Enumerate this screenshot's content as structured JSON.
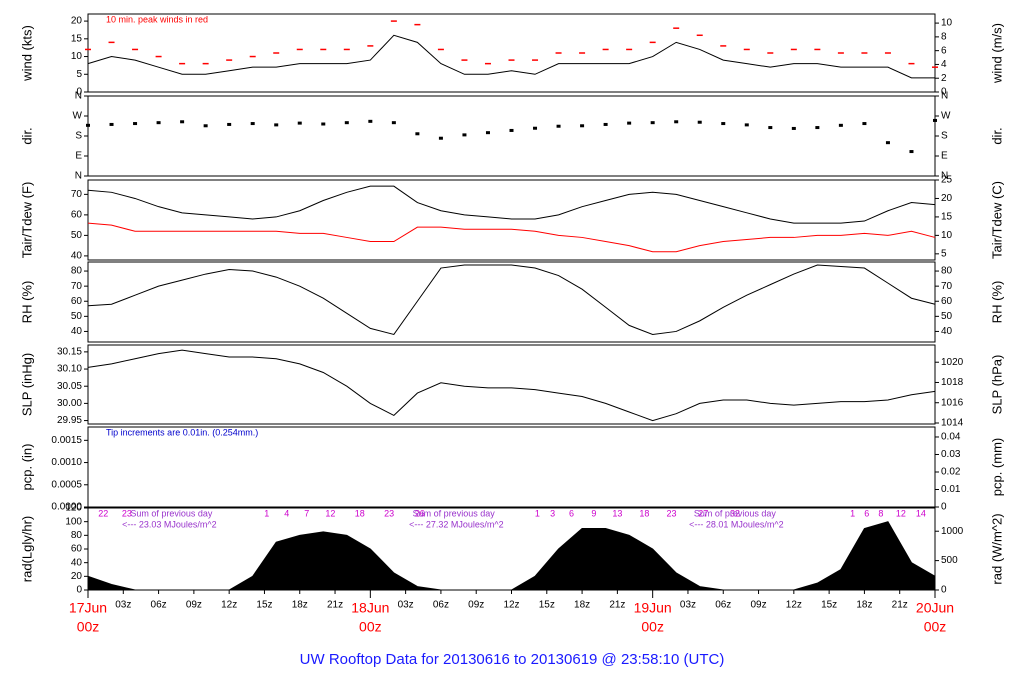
{
  "title": "UW Rooftop Data for 20130616  to  20130619 @ 23:58:10  (UTC)",
  "chart_data": [
    {
      "type": "line",
      "ylabel": "wind (kts)",
      "y2label": "wind (m/s)",
      "annotation": "10 min. peak winds in red",
      "xlim": [
        0,
        72
      ],
      "ylim": [
        0,
        22
      ],
      "yticks": [
        0,
        5,
        10,
        15,
        20
      ],
      "y2lim": [
        0,
        11.32
      ],
      "y2ticks": [
        0,
        2,
        4,
        6,
        8,
        10
      ],
      "x": [
        0,
        2,
        4,
        6,
        8,
        10,
        12,
        14,
        16,
        18,
        20,
        22,
        24,
        26,
        28,
        30,
        32,
        34,
        36,
        38,
        40,
        42,
        44,
        46,
        48,
        50,
        52,
        54,
        56,
        58,
        60,
        62,
        64,
        66,
        68,
        70,
        72
      ],
      "series": [
        {
          "name": "wind",
          "color": "#000000",
          "mode": "line",
          "values": [
            8,
            10,
            9,
            7,
            5,
            5,
            6,
            7,
            7,
            8,
            8,
            8,
            9,
            16,
            14,
            8,
            5,
            5,
            6,
            5,
            8,
            8,
            8,
            8,
            10,
            14,
            12,
            9,
            8,
            7,
            8,
            8,
            7,
            7,
            7,
            4,
            4
          ]
        },
        {
          "name": "peak",
          "color": "#ff0000",
          "mode": "dash",
          "values": [
            12,
            14,
            12,
            10,
            8,
            8,
            9,
            10,
            11,
            12,
            12,
            12,
            13,
            20,
            19,
            12,
            9,
            8,
            9,
            9,
            11,
            11,
            12,
            12,
            14,
            18,
            16,
            13,
            12,
            11,
            12,
            12,
            11,
            11,
            11,
            8,
            7
          ]
        }
      ]
    },
    {
      "type": "scatter",
      "ylabel": "dir.",
      "y2label": "dir.",
      "xlim": [
        0,
        72
      ],
      "ylim": [
        0,
        360
      ],
      "yticks": [
        {
          "value": 0,
          "label": "N"
        },
        {
          "value": 90,
          "label": "E"
        },
        {
          "value": 180,
          "label": "S"
        },
        {
          "value": 270,
          "label": "W"
        },
        {
          "value": 360,
          "label": "N"
        }
      ],
      "y2lim": [
        0,
        360
      ],
      "y2ticks": [
        {
          "value": 0,
          "label": "N"
        },
        {
          "value": 90,
          "label": "E"
        },
        {
          "value": 180,
          "label": "S"
        },
        {
          "value": 270,
          "label": "W"
        },
        {
          "value": 360,
          "label": "N"
        }
      ],
      "x": [
        0,
        2,
        4,
        6,
        8,
        10,
        12,
        14,
        16,
        18,
        20,
        22,
        24,
        26,
        28,
        30,
        32,
        34,
        36,
        38,
        40,
        42,
        44,
        46,
        48,
        50,
        52,
        54,
        56,
        58,
        60,
        62,
        64,
        66,
        68,
        70,
        72
      ],
      "series": [
        {
          "name": "direction",
          "color": "#000000",
          "values": [
            228,
            232,
            236,
            240,
            244,
            226,
            232,
            236,
            230,
            238,
            234,
            240,
            246,
            240,
            190,
            170,
            185,
            195,
            205,
            215,
            224,
            226,
            232,
            238,
            240,
            244,
            242,
            236,
            230,
            218,
            214,
            218,
            228,
            236,
            150,
            110,
            250
          ]
        }
      ]
    },
    {
      "type": "line",
      "ylabel": "Tair/Tdew (F)",
      "y2label": "Tair/Tdew (C)",
      "xlim": [
        0,
        72
      ],
      "ylim": [
        38,
        77
      ],
      "yticks": [
        40,
        50,
        60,
        70
      ],
      "y2lim": [
        3.33,
        25
      ],
      "y2ticks": [
        5,
        10,
        15,
        20,
        25
      ],
      "x": [
        0,
        2,
        4,
        6,
        8,
        10,
        12,
        14,
        16,
        18,
        20,
        22,
        24,
        26,
        28,
        30,
        32,
        34,
        36,
        38,
        40,
        42,
        44,
        46,
        48,
        50,
        52,
        54,
        56,
        58,
        60,
        62,
        64,
        66,
        68,
        70,
        72
      ],
      "series": [
        {
          "name": "Tair",
          "color": "#000000",
          "mode": "line",
          "values": [
            72,
            71,
            68,
            64,
            61,
            60,
            59,
            58,
            59,
            62,
            67,
            71,
            74,
            74,
            66,
            62,
            60,
            59,
            58,
            58,
            60,
            64,
            67,
            70,
            71,
            70,
            67,
            64,
            61,
            58,
            56,
            56,
            56,
            57,
            62,
            66,
            65
          ]
        },
        {
          "name": "Tdew",
          "color": "#ff0000",
          "mode": "line",
          "values": [
            56,
            55,
            52,
            52,
            52,
            52,
            52,
            52,
            52,
            51,
            51,
            49,
            47,
            47,
            54,
            54,
            53,
            53,
            53,
            52,
            50,
            49,
            47,
            45,
            42,
            42,
            45,
            47,
            48,
            49,
            49,
            50,
            50,
            51,
            50,
            52,
            49
          ]
        }
      ]
    },
    {
      "type": "line",
      "ylabel": "RH (%)",
      "y2label": "RH (%)",
      "xlim": [
        0,
        72
      ],
      "ylim": [
        33,
        86
      ],
      "yticks": [
        40,
        50,
        60,
        70,
        80
      ],
      "y2lim": [
        33,
        86
      ],
      "y2ticks": [
        40,
        50,
        60,
        70,
        80
      ],
      "x": [
        0,
        2,
        4,
        6,
        8,
        10,
        12,
        14,
        16,
        18,
        20,
        22,
        24,
        26,
        28,
        30,
        32,
        34,
        36,
        38,
        40,
        42,
        44,
        46,
        48,
        50,
        52,
        54,
        56,
        58,
        60,
        62,
        64,
        66,
        68,
        70,
        72
      ],
      "series": [
        {
          "name": "RH",
          "color": "#000000",
          "mode": "line",
          "values": [
            57,
            58,
            64,
            70,
            74,
            78,
            81,
            80,
            76,
            70,
            62,
            52,
            42,
            38,
            60,
            82,
            84,
            84,
            84,
            82,
            77,
            68,
            56,
            44,
            38,
            40,
            47,
            56,
            64,
            71,
            78,
            84,
            83,
            82,
            72,
            62,
            58
          ]
        }
      ]
    },
    {
      "type": "line",
      "ylabel": "SLP (inHg)",
      "y2label": "SLP (hPa)",
      "xlim": [
        0,
        72
      ],
      "ylim": [
        29.94,
        30.17
      ],
      "yticks": [
        29.95,
        {
          "value": 30.0,
          "label": "30.00"
        },
        30.05,
        {
          "value": 30.1,
          "label": "30.10"
        },
        30.15
      ],
      "y2lim": [
        1013.9,
        1021.7
      ],
      "y2ticks": [
        1014,
        1016,
        1018,
        1020
      ],
      "x": [
        0,
        2,
        4,
        6,
        8,
        10,
        12,
        14,
        16,
        18,
        20,
        22,
        24,
        26,
        28,
        30,
        32,
        34,
        36,
        38,
        40,
        42,
        44,
        46,
        48,
        50,
        52,
        54,
        56,
        58,
        60,
        62,
        64,
        66,
        68,
        70,
        72
      ],
      "series": [
        {
          "name": "SLP",
          "color": "#000000",
          "mode": "line",
          "values": [
            30.105,
            30.115,
            30.13,
            30.145,
            30.155,
            30.145,
            30.135,
            30.135,
            30.13,
            30.115,
            30.09,
            30.05,
            30.0,
            29.965,
            30.03,
            30.06,
            30.05,
            30.045,
            30.045,
            30.04,
            30.03,
            30.02,
            30.0,
            29.975,
            29.95,
            29.97,
            30.0,
            30.01,
            30.01,
            30.0,
            29.995,
            30.0,
            30.005,
            30.005,
            30.01,
            30.025,
            30.035
          ]
        }
      ]
    },
    {
      "type": "line",
      "ylabel": "pcp. (in)",
      "y2label": "pcp. (mm)",
      "annotation": "Tip increments are 0.01in. (0.254mm.)",
      "xlim": [
        0,
        72
      ],
      "ylim": [
        0,
        0.0018
      ],
      "yticks": [
        {
          "value": 0,
          "label": "0.0000"
        },
        {
          "value": 0.0005,
          "label": "0.0005"
        },
        {
          "value": 0.001,
          "label": "0.0010"
        },
        {
          "value": 0.0015,
          "label": "0.0015"
        }
      ],
      "y2lim": [
        0,
        0.0457
      ],
      "y2ticks": [
        0,
        0.01,
        0.02,
        0.03,
        0.04
      ],
      "series": []
    },
    {
      "type": "area",
      "ylabel": "rad(Lgly/hr)",
      "y2label": "rad (W/m^2)",
      "xlim": [
        0,
        72
      ],
      "ylim": [
        0,
        120
      ],
      "yticks": [
        0,
        20,
        40,
        60,
        80,
        100,
        120
      ],
      "y2lim": [
        0,
        1395
      ],
      "y2ticks": [
        0,
        500,
        1000
      ],
      "hour_labels": [
        "22",
        "23",
        "1",
        "4",
        "7",
        "12",
        "18",
        "23",
        "26",
        "1",
        "3",
        "6",
        "9",
        "13",
        "18",
        "23",
        "27",
        "32",
        "1",
        "6",
        "8",
        "12",
        "14"
      ],
      "annotations": [
        "Sum of previous day",
        "<--- 23.03 MJoules/m^2",
        "Sum of previous day",
        "<--- 27.32 MJoules/m^2",
        "Sum of previous day",
        "<--- 28.01 MJoules/m^2"
      ],
      "xticks": [
        {
          "value": 3,
          "label": "03z"
        },
        {
          "value": 6,
          "label": "06z"
        },
        {
          "value": 9,
          "label": "09z"
        },
        {
          "value": 12,
          "label": "12z"
        },
        {
          "value": 15,
          "label": "15z"
        },
        {
          "value": 18,
          "label": "18z"
        },
        {
          "value": 21,
          "label": "21z"
        },
        {
          "value": 27,
          "label": "03z"
        },
        {
          "value": 30,
          "label": "06z"
        },
        {
          "value": 33,
          "label": "09z"
        },
        {
          "value": 36,
          "label": "12z"
        },
        {
          "value": 39,
          "label": "15z"
        },
        {
          "value": 42,
          "label": "18z"
        },
        {
          "value": 45,
          "label": "21z"
        },
        {
          "value": 51,
          "label": "03z"
        },
        {
          "value": 54,
          "label": "06z"
        },
        {
          "value": 57,
          "label": "09z"
        },
        {
          "value": 60,
          "label": "12z"
        },
        {
          "value": 63,
          "label": "15z"
        },
        {
          "value": 66,
          "label": "18z"
        },
        {
          "value": 69,
          "label": "21z"
        }
      ],
      "day_ticks": [
        {
          "value": 0,
          "label": "17Jun"
        },
        {
          "value": 24,
          "label": "18Jun"
        },
        {
          "value": 48,
          "label": "19Jun"
        },
        {
          "value": 72,
          "label": "20Jun"
        }
      ],
      "day_tick_sublabels": [
        "00z",
        "00z",
        "00z",
        "00z"
      ],
      "x": [
        0,
        2,
        4,
        6,
        8,
        10,
        12,
        14,
        16,
        18,
        20,
        22,
        24,
        26,
        28,
        30,
        32,
        34,
        36,
        38,
        40,
        42,
        44,
        46,
        48,
        50,
        52,
        54,
        56,
        58,
        60,
        62,
        64,
        66,
        68,
        70,
        72
      ],
      "series": [
        {
          "name": "radiation",
          "color": "#000000",
          "values": [
            20,
            8,
            0,
            0,
            0,
            0,
            0,
            20,
            70,
            80,
            85,
            80,
            60,
            25,
            5,
            0,
            0,
            0,
            0,
            20,
            60,
            90,
            90,
            80,
            60,
            25,
            5,
            0,
            0,
            0,
            0,
            10,
            30,
            90,
            100,
            40,
            20
          ]
        }
      ]
    }
  ]
}
